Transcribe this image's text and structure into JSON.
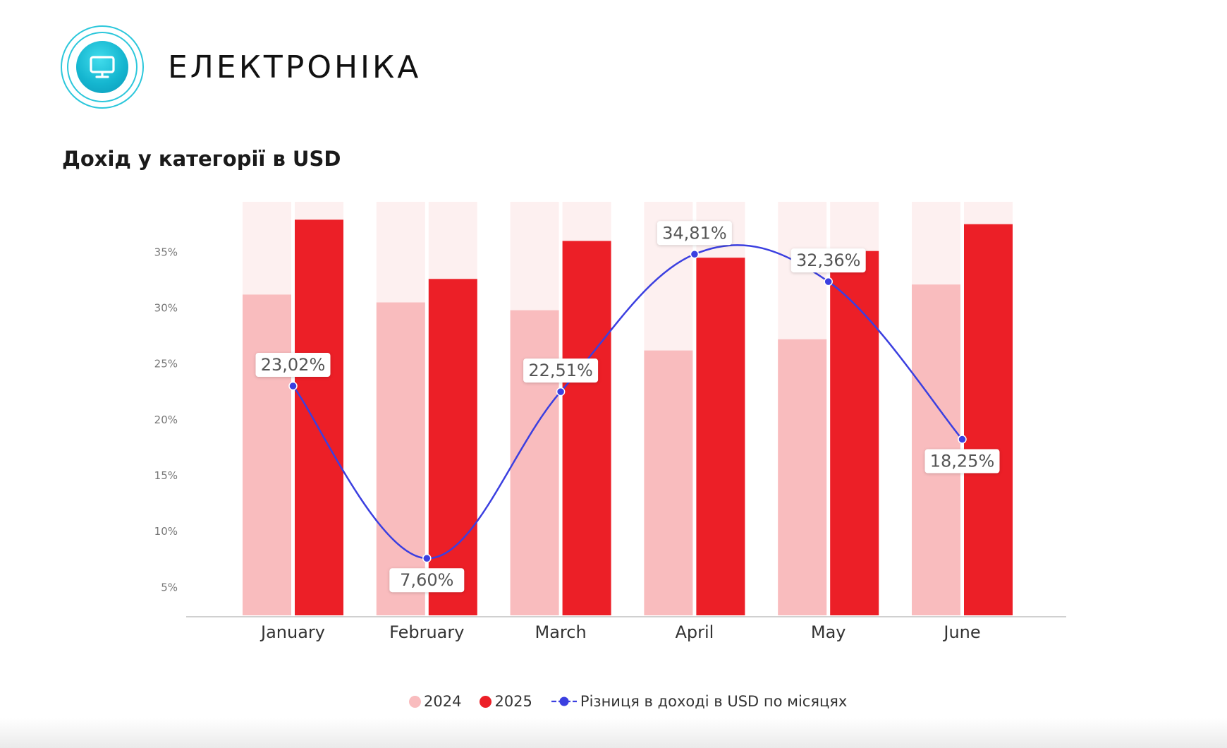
{
  "header": {
    "title": "ЕЛЕКТРОНІКА",
    "icon": "monitor-icon",
    "accent_color": "#18b9d3"
  },
  "chart_data": {
    "type": "bar",
    "title": "Дохід у категорії в USD",
    "categories": [
      "January",
      "February",
      "March",
      "April",
      "May",
      "June"
    ],
    "y_ticks": [
      "5%",
      "10%",
      "15%",
      "20%",
      "25%",
      "30%",
      "35%"
    ],
    "ylim": [
      2.5,
      39.5
    ],
    "grid": false,
    "legend_position": "bottom",
    "series": [
      {
        "name": "2024",
        "type": "bar",
        "color": "#f9bcbe",
        "background_color": "#fdf0f0",
        "values": [
          31.2,
          30.5,
          29.8,
          26.2,
          27.2,
          32.1
        ]
      },
      {
        "name": "2025",
        "type": "bar",
        "color": "#ec1f27",
        "background_color": "#fdf0f0",
        "values": [
          37.9,
          32.6,
          36.0,
          34.5,
          35.1,
          37.5
        ]
      },
      {
        "name": "Різниця в доході в USD по місяцях",
        "type": "line",
        "color": "#3b3fe0",
        "values": [
          23.02,
          7.6,
          22.51,
          34.81,
          32.36,
          18.25
        ],
        "labels": [
          "23,02%",
          "7,60%",
          "22,51%",
          "34,81%",
          "32,36%",
          "18,25%"
        ]
      }
    ]
  }
}
